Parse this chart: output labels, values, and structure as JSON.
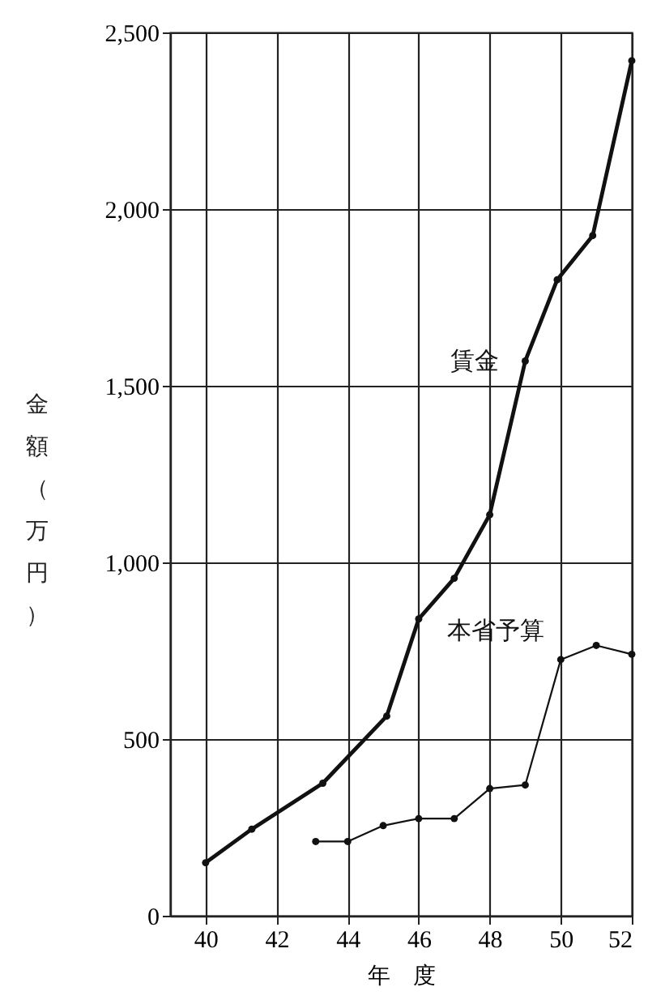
{
  "chart_data": {
    "type": "line",
    "xlabel": "年度",
    "ylabel": "金額（万円）",
    "xlim": [
      39,
      52
    ],
    "xticks": [
      40,
      42,
      44,
      46,
      48,
      50,
      52
    ],
    "ylim": [
      0,
      2500
    ],
    "yticks": [
      0,
      500,
      {
        "value": 1000,
        "label": "1,000"
      },
      {
        "value": 1500,
        "label": "1,500"
      },
      {
        "value": 2000,
        "label": "2,000"
      },
      {
        "value": 2500,
        "label": "2,500"
      }
    ],
    "grid": true,
    "marker": "circle",
    "line_style": "solid",
    "series": [
      {
        "name": "賃金",
        "color": "#111111",
        "x": [
          40,
          41.3,
          43.3,
          45.1,
          46,
          47,
          48,
          49,
          49.9,
          50.9,
          52
        ],
        "values": [
          150,
          245,
          375,
          565,
          840,
          955,
          1135,
          1570,
          1800,
          1925,
          2420
        ]
      },
      {
        "name": "本省予算",
        "color": "#111111",
        "x": [
          43.1,
          44,
          45,
          46,
          47,
          48,
          49,
          50,
          51,
          52
        ],
        "values": [
          210,
          210,
          255,
          275,
          275,
          360,
          370,
          725,
          765,
          740
        ]
      }
    ]
  }
}
